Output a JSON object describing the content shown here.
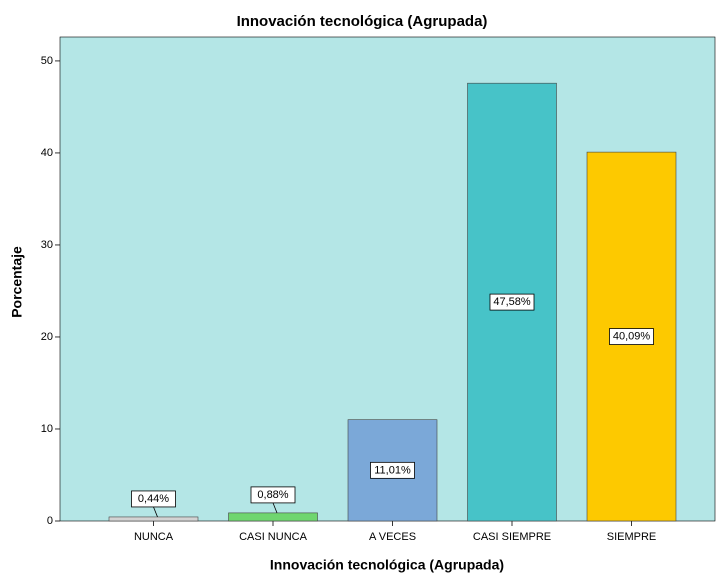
{
  "chart_data": {
    "type": "bar",
    "title": "Innovación tecnológica (Agrupada)",
    "x_label": "Innovación tecnológica (Agrupada)",
    "y_label": "Porcentaje",
    "categories": [
      "NUNCA",
      "CASI NUNCA",
      "A VECES",
      "CASI SIEMPRE",
      "SIEMPRE"
    ],
    "values": [
      0.44,
      0.88,
      11.01,
      47.58,
      40.09
    ],
    "value_labels": [
      "0,44%",
      "0,88%",
      "11,01%",
      "47,58%",
      "40,09%"
    ],
    "colors": [
      "#d3d3d3",
      "#6fd66f",
      "#7ba8d8",
      "#47c3c8",
      "#fdc900"
    ],
    "ylim": [
      0,
      52.6
    ],
    "yticks": [
      0,
      10,
      20,
      30,
      40,
      50
    ]
  }
}
